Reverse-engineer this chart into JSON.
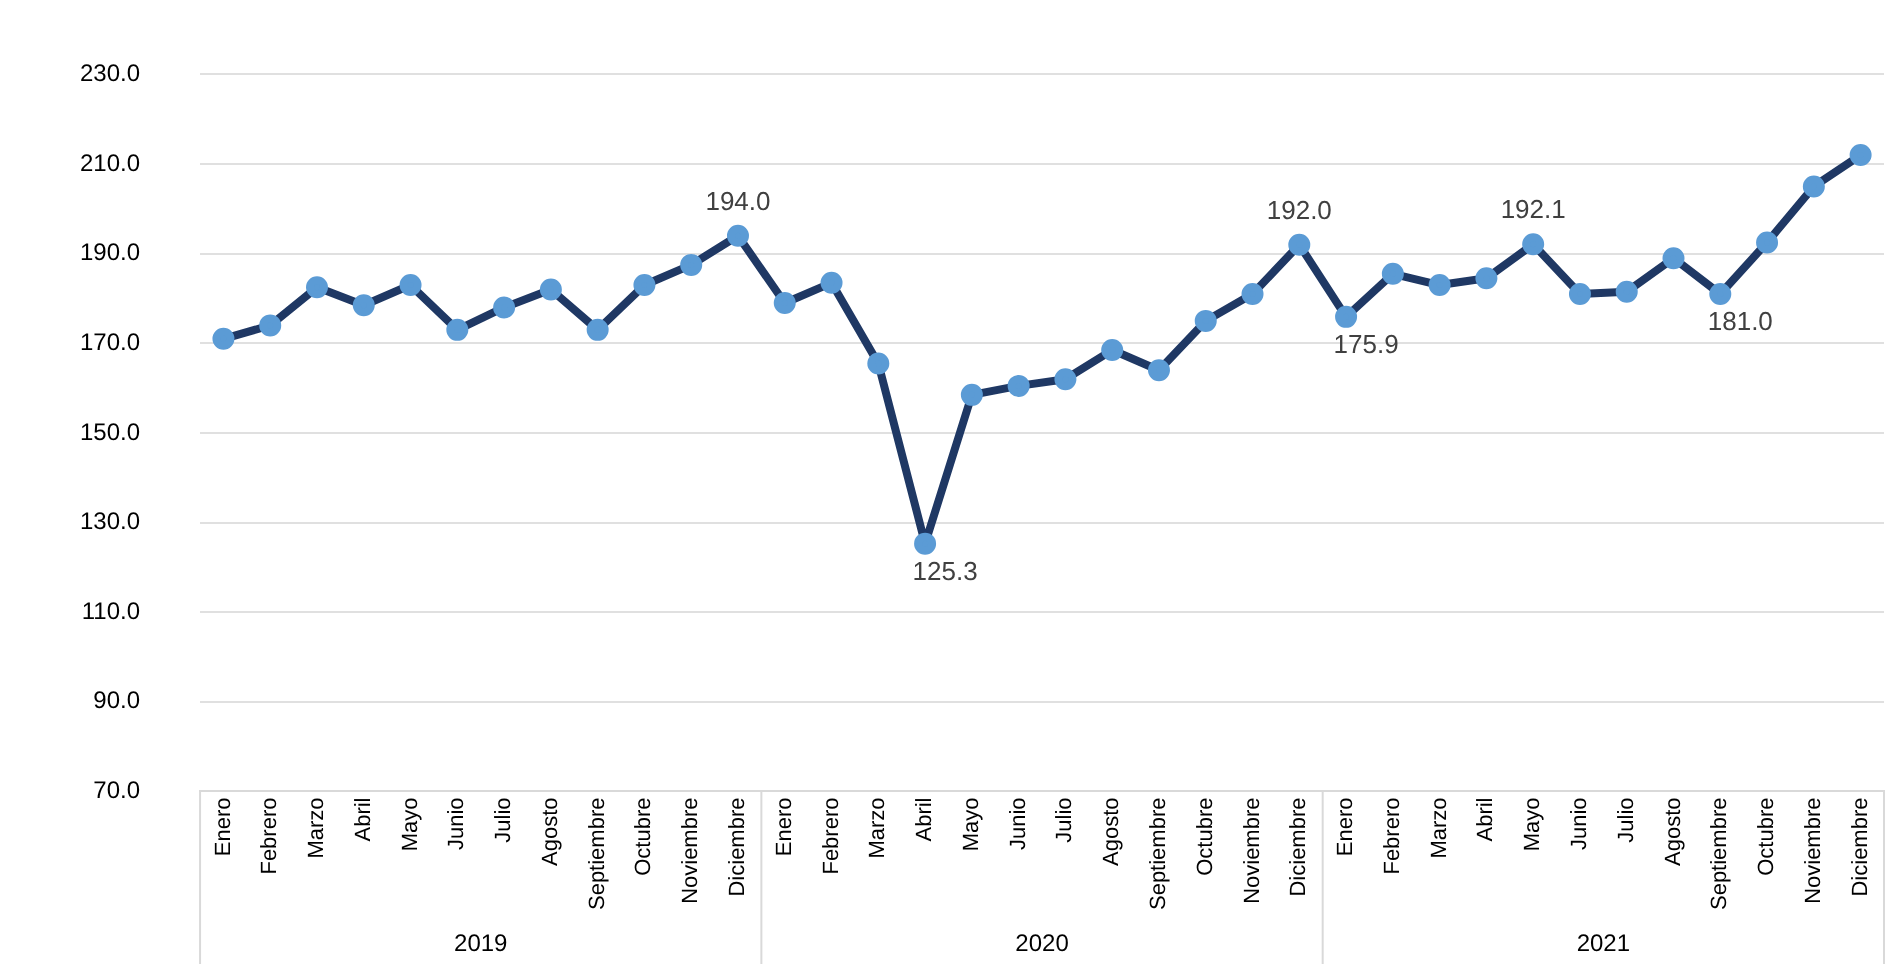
{
  "chart_data": {
    "type": "line",
    "categories": [
      "Enero",
      "Febrero",
      "Marzo",
      "Abril",
      "Mayo",
      "Junio",
      "Julio",
      "Agosto",
      "Septiembre",
      "Octubre",
      "Noviembre",
      "Diciembre",
      "Enero",
      "Febrero",
      "Marzo",
      "Abril",
      "Mayo",
      "Junio",
      "Julio",
      "Agosto",
      "Septiembre",
      "Octubre",
      "Noviembre",
      "Diciembre",
      "Enero",
      "Febrero",
      "Marzo",
      "Abril",
      "Mayo",
      "Junio",
      "Julio",
      "Agosto",
      "Septiembre",
      "Octubre",
      "Noviembre",
      "Diciembre"
    ],
    "series": [
      {
        "color": "#1f3864",
        "values": [
          171,
          174,
          182.5,
          178.5,
          183,
          173,
          178,
          182,
          173,
          183,
          187.5,
          194.0,
          179,
          183.5,
          165.5,
          125.3,
          158.5,
          160.5,
          162,
          168.5,
          164,
          175,
          181,
          192.0,
          175.9,
          185.5,
          183,
          184.5,
          192.1,
          181,
          181.5,
          189,
          181.0,
          192.5,
          205,
          212
        ],
        "value_labels": [
          null,
          null,
          null,
          null,
          null,
          null,
          null,
          null,
          null,
          null,
          null,
          "194.0",
          null,
          null,
          null,
          "125.3",
          null,
          null,
          null,
          null,
          null,
          null,
          null,
          "192.0",
          "175.9",
          null,
          null,
          null,
          "192.1",
          null,
          null,
          null,
          "181.0",
          null,
          null,
          null
        ]
      }
    ],
    "ylim": [
      70,
      230
    ],
    "yticks": [
      {
        "value": 70,
        "label": "70.0"
      },
      {
        "value": 90,
        "label": "90.0"
      },
      {
        "value": 110,
        "label": "110.0"
      },
      {
        "value": 130,
        "label": "130.0"
      },
      {
        "value": 150,
        "label": "150.0"
      },
      {
        "value": 170,
        "label": "170.0"
      },
      {
        "value": 190,
        "label": "190.0"
      },
      {
        "value": 210,
        "label": "210.0"
      },
      {
        "value": 230,
        "label": "230.0"
      }
    ],
    "annotations": [
      "2019",
      "2020",
      "2021"
    ],
    "grid": "y",
    "legend": false,
    "marker": "circle",
    "line_style": "solid"
  }
}
